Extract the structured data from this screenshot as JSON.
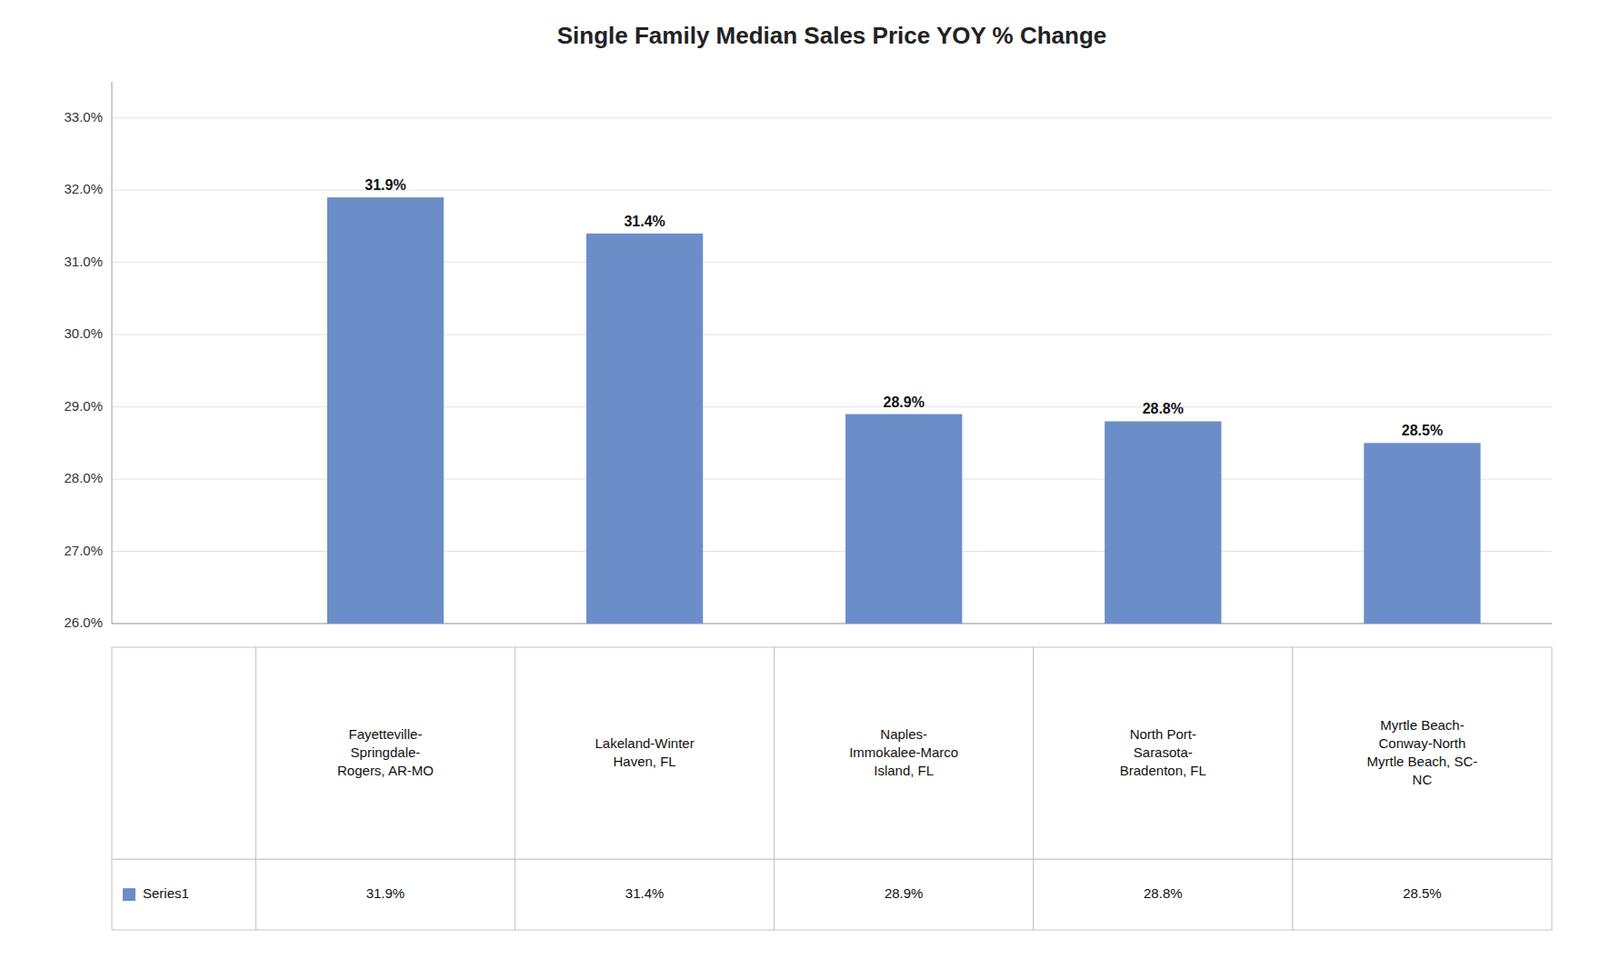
{
  "chart_data": {
    "type": "bar",
    "title": "Single Family Median Sales Price YOY % Change",
    "categories": [
      "Fayetteville-\nSpringdale-\nRogers, AR-MO",
      "Lakeland-Winter\nHaven, FL",
      "Naples-\nImmokalee-Marco\nIsland, FL",
      "North Port-\nSarasota-\nBradenton, FL",
      "Myrtle Beach-\nConway-North\nMyrtle Beach, SC-\nNC"
    ],
    "series": [
      {
        "name": "Series1",
        "color": "#6B8EC9",
        "values": [
          31.9,
          31.4,
          28.9,
          28.8,
          28.5
        ],
        "value_labels": [
          "31.9%",
          "31.4%",
          "28.9%",
          "28.8%",
          "28.5%"
        ]
      }
    ],
    "ylim": [
      26.0,
      33.5
    ],
    "yticks": [
      {
        "value": 26.0,
        "label": "26.0%"
      },
      {
        "value": 27.0,
        "label": "27.0%"
      },
      {
        "value": 28.0,
        "label": "28.0%"
      },
      {
        "value": 29.0,
        "label": "29.0%"
      },
      {
        "value": 30.0,
        "label": "30.0%"
      },
      {
        "value": 31.0,
        "label": "31.0%"
      },
      {
        "value": 32.0,
        "label": "32.0%"
      },
      {
        "value": 33.0,
        "label": "33.0%"
      }
    ],
    "grid": true,
    "data_labels": true,
    "tick_labels": "y"
  }
}
